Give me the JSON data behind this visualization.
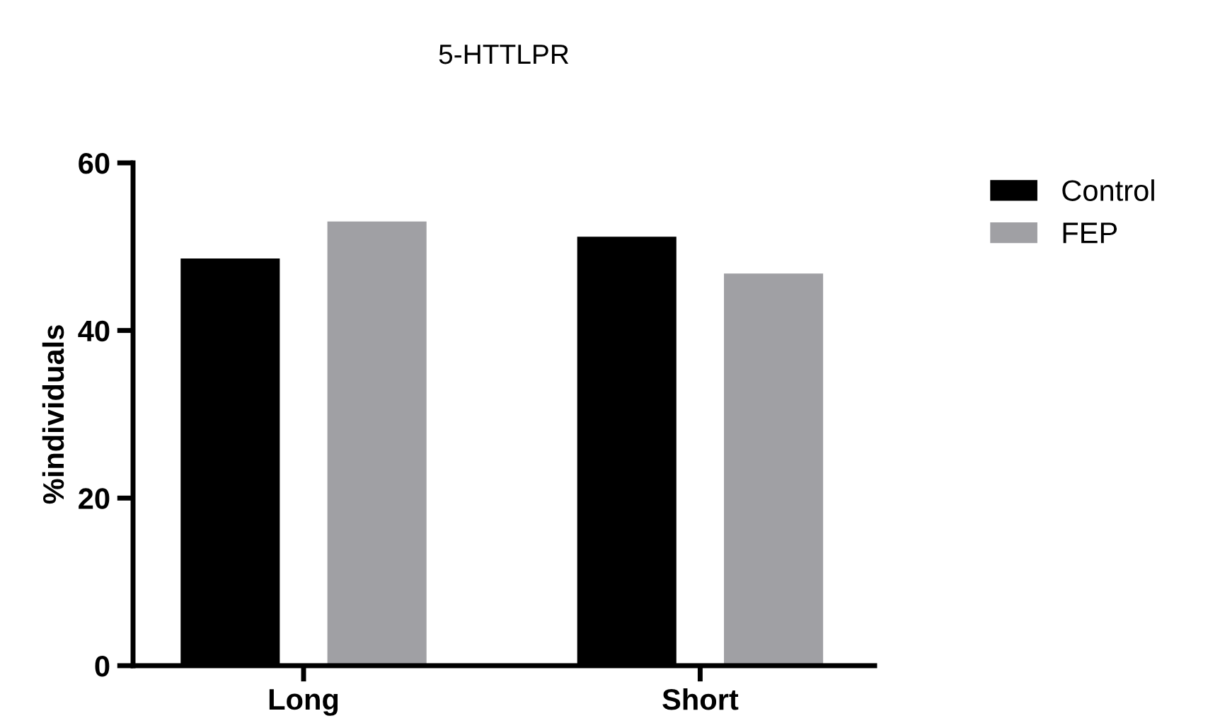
{
  "chart_data": {
    "type": "bar",
    "title": "5-HTTLPR",
    "ylabel": "%individuals",
    "categories": [
      "Long",
      "Short"
    ],
    "series": [
      {
        "name": "Control",
        "color": "#000000",
        "values": [
          48.6,
          51.2
        ]
      },
      {
        "name": "FEP",
        "color": "#a0a0a4",
        "values": [
          53.0,
          46.8
        ]
      }
    ],
    "ylim": [
      0,
      60
    ],
    "yticks": [
      0,
      20,
      40,
      60
    ],
    "grid": false,
    "legend": "right"
  }
}
